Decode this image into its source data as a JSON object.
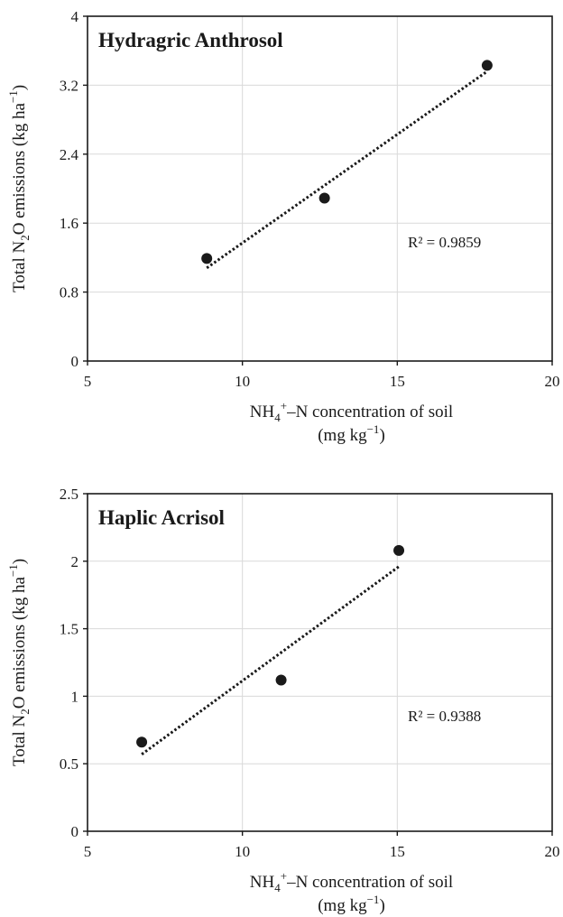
{
  "chart_data": [
    {
      "type": "scatter",
      "title": "Hydragric Anthrosol",
      "xlabel": {
        "parts": [
          "NH",
          "4",
          "+",
          "–N concentration of soil"
        ],
        "line2": [
          "(mg kg",
          "−1",
          ")"
        ]
      },
      "ylabel": {
        "parts": [
          "Total N",
          "2",
          "O emissions (kg ha",
          "−1",
          ")"
        ]
      },
      "xlim": [
        5,
        20
      ],
      "ylim": [
        0,
        4
      ],
      "xticks": [
        "5",
        "10",
        "15",
        "20"
      ],
      "yticks": [
        "0",
        "0.8",
        "1.6",
        "2.4",
        "3.2",
        "4"
      ],
      "grid": true,
      "series": [
        {
          "points": [
            [
              8.85,
              1.19
            ],
            [
              12.65,
              1.89
            ],
            [
              17.9,
              3.43
            ]
          ]
        }
      ],
      "trendline": {
        "x": [
          8.85,
          17.9
        ],
        "y": [
          1.08,
          3.36
        ]
      },
      "annotation": "R² = 0.9859"
    },
    {
      "type": "scatter",
      "title": "Haplic Acrisol",
      "xlabel": {
        "parts": [
          "NH",
          "4",
          "+",
          "–N concentration of soil"
        ],
        "line2": [
          "(mg kg",
          "−1",
          ")"
        ]
      },
      "ylabel": {
        "parts": [
          "Total N",
          "2",
          "O emissions (kg ha",
          "−1",
          ")"
        ]
      },
      "xlim": [
        5,
        20
      ],
      "ylim": [
        0,
        2.5
      ],
      "xticks": [
        "5",
        "10",
        "15",
        "20"
      ],
      "yticks": [
        "0",
        "0.5",
        "1",
        "1.5",
        "2",
        "2.5"
      ],
      "grid": true,
      "series": [
        {
          "points": [
            [
              6.75,
              0.66
            ],
            [
              11.25,
              1.12
            ],
            [
              15.05,
              2.08
            ]
          ]
        }
      ],
      "trendline": {
        "x": [
          6.75,
          15.05
        ],
        "y": [
          0.57,
          1.96
        ]
      },
      "annotation": "R² = 0.9388"
    }
  ]
}
